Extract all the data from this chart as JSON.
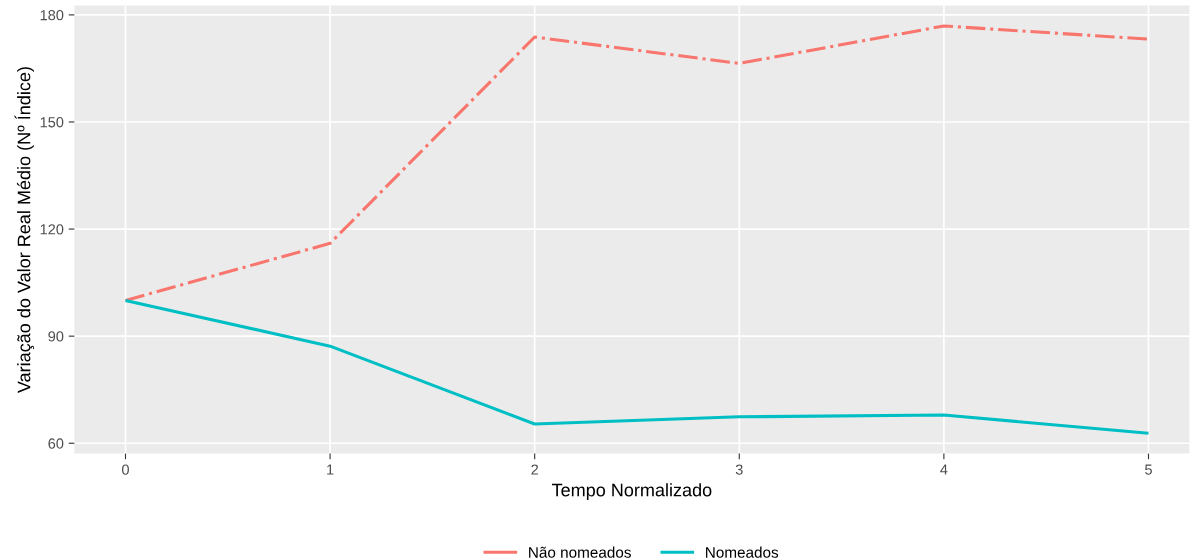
{
  "chart_data": {
    "type": "line",
    "xlabel": "Tempo Normalizado",
    "ylabel": "Variação do Valor Real Médio (Nº Índice)",
    "x": [
      0,
      1,
      2,
      3,
      4,
      5
    ],
    "series": [
      {
        "name": "Não nomeados",
        "color": "#f8766d",
        "line_style": "dashdot",
        "values": [
          100,
          116,
          173.8,
          166.4,
          176.9,
          173.2
        ]
      },
      {
        "name": "Nomeados",
        "color": "#00bfc4",
        "line_style": "solid",
        "values": [
          100,
          87.2,
          65.4,
          67.4,
          67.9,
          62.8
        ]
      }
    ],
    "xlim": [
      -0.25,
      5.2
    ],
    "xticks": [
      0,
      1,
      2,
      3,
      4,
      5
    ],
    "ylim": [
      57.1,
      182.6
    ],
    "yticks": [
      60,
      90,
      120,
      150,
      180
    ],
    "grid": true,
    "legend": "bottom",
    "marker": "none"
  }
}
